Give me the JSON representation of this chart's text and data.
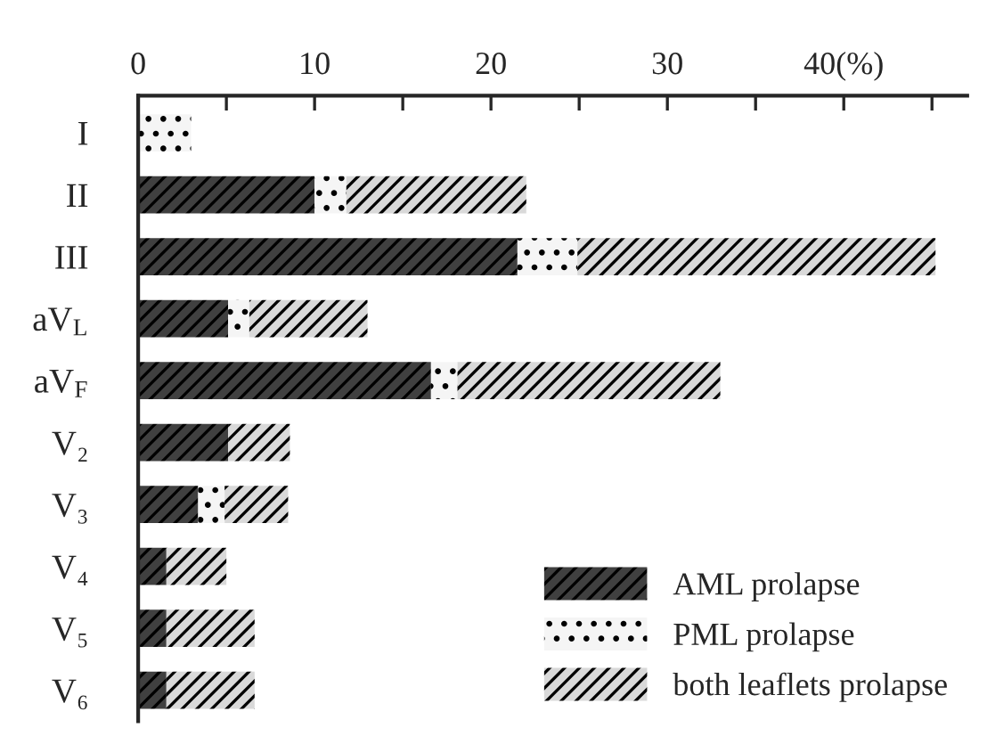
{
  "chart_data": {
    "type": "bar",
    "orientation": "horizontal",
    "stacked": true,
    "categories": [
      "I",
      "II",
      "III",
      "aV$_{L}$",
      "aV$_{F}$",
      "V₂",
      "V₃",
      "V₄",
      "V₅",
      "V₆"
    ],
    "series": [
      {
        "name": "AML prolapse",
        "color": "#404040",
        "values": [
          0,
          10,
          21.5,
          5.1,
          16.6,
          5.1,
          3.4,
          1.6,
          1.6,
          1.6
        ]
      },
      {
        "name": "PML prolapse",
        "color": "#f5f5f5",
        "values": [
          3.0,
          1.8,
          3.4,
          1.2,
          1.5,
          0,
          1.5,
          0,
          0,
          0
        ]
      },
      {
        "name": "both leaflets prolapse",
        "color": "#d9d9d9",
        "values": [
          0,
          10.2,
          20.3,
          6.7,
          14.9,
          3.5,
          3.6,
          3.4,
          5.0,
          5.0
        ]
      }
    ],
    "xlim": [
      0,
      47
    ],
    "xticks": [
      0,
      {
        "value": 5,
        "label": null
      },
      10,
      {
        "value": 15,
        "label": null
      },
      20,
      {
        "value": 25,
        "label": null
      },
      30,
      {
        "value": 35,
        "label": null
      },
      {
        "value": 40,
        "label": "40(%)"
      },
      {
        "value": 45,
        "label": null
      }
    ],
    "legend": "bottom right",
    "grid": false
  }
}
